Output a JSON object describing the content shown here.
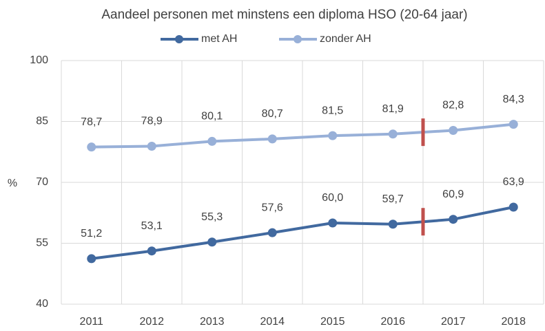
{
  "chart_data": {
    "type": "line",
    "title": "Aandeel  personen met minstens een diploma HSO (20-64 jaar)",
    "y_label": "%",
    "categories": [
      "2011",
      "2012",
      "2013",
      "2014",
      "2015",
      "2016",
      "2017",
      "2018"
    ],
    "series": [
      {
        "name": "met AH",
        "color": "#41699f",
        "values": [
          51.2,
          53.1,
          55.3,
          57.6,
          60.0,
          59.7,
          60.9,
          63.9
        ],
        "value_labels": [
          "51,2",
          "53,1",
          "55,3",
          "57,6",
          "60,0",
          "59,7",
          "60,9",
          "63,9"
        ]
      },
      {
        "name": "zonder AH",
        "color": "#98b0d8",
        "values": [
          78.7,
          78.9,
          80.1,
          80.7,
          81.5,
          81.9,
          82.8,
          84.3
        ],
        "value_labels": [
          "78,7",
          "78,9",
          "80,1",
          "80,7",
          "81,5",
          "81,9",
          "82,8",
          "84,3"
        ]
      }
    ],
    "ylim": [
      40,
      100
    ],
    "yticks": [
      40,
      55,
      70,
      85,
      100
    ],
    "grid": true,
    "break_color": "#c0504d"
  }
}
